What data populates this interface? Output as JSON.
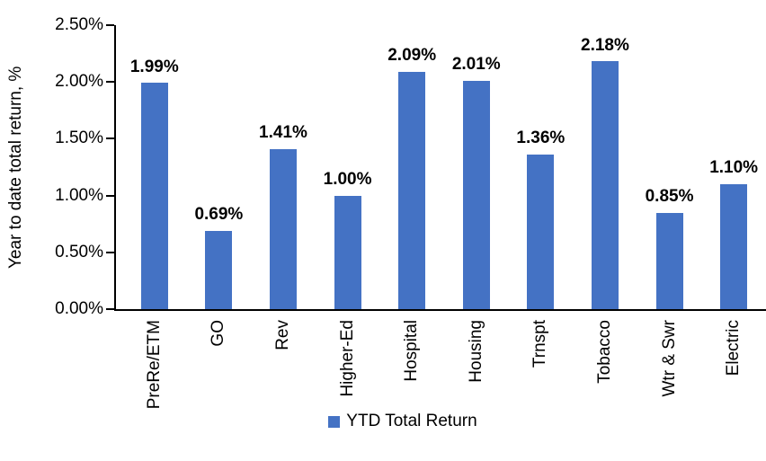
{
  "chart_data": {
    "type": "bar",
    "categories": [
      "PreRe/ETM",
      "GO",
      "Rev",
      "Higher-Ed",
      "Hospital",
      "Housing",
      "Trnspt",
      "Tobacco",
      "Wtr & Swr",
      "Electric"
    ],
    "values": [
      1.99,
      0.69,
      1.41,
      1.0,
      2.09,
      2.01,
      1.36,
      2.18,
      0.85,
      1.1
    ],
    "value_labels": [
      "1.99%",
      "0.69%",
      "1.41%",
      "1.00%",
      "2.09%",
      "2.01%",
      "1.36%",
      "2.18%",
      "0.85%",
      "1.10%"
    ],
    "title": "",
    "xlabel": "",
    "ylabel": "Year to date total return, %",
    "ylim": [
      0,
      2.5
    ],
    "yticks": [
      "0.00%",
      "0.50%",
      "1.00%",
      "1.50%",
      "2.00%",
      "2.50%"
    ],
    "grid": false,
    "legend": {
      "position": "bottom-center",
      "label": "YTD Total Return",
      "color": "#4472C4"
    },
    "bar_color": "#4472C4"
  },
  "colors": {
    "bar": "#4472C4",
    "axis": "#000000",
    "text": "#000000",
    "background": "#FFFFFF"
  }
}
